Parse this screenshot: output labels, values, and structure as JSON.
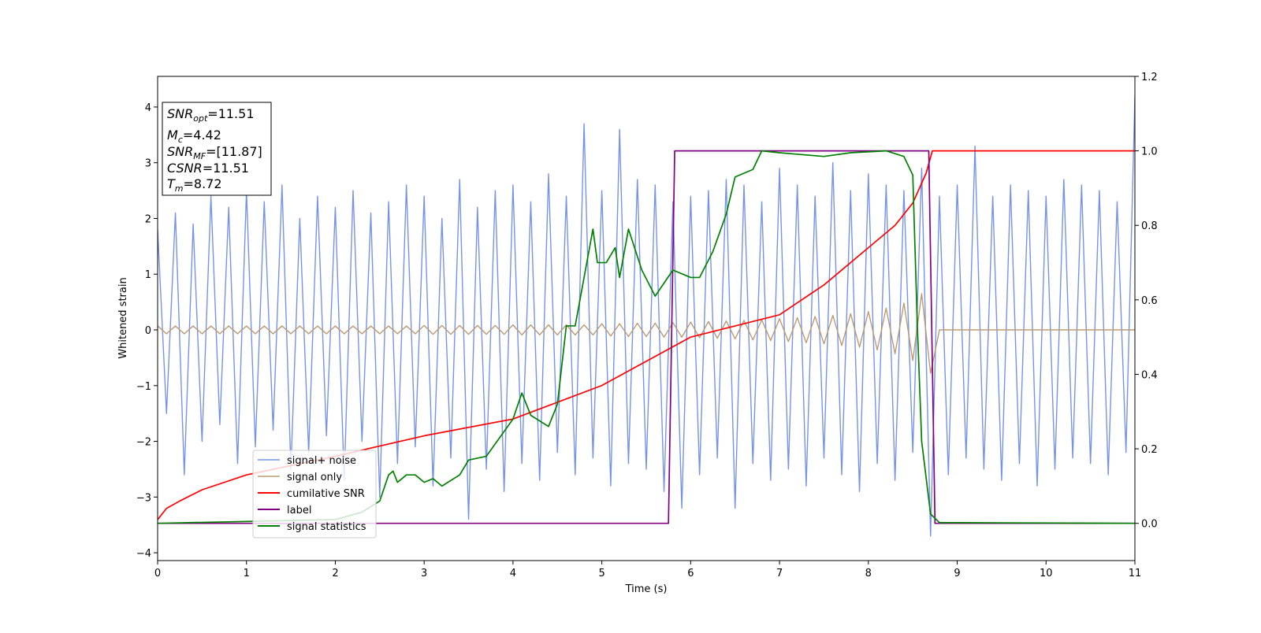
{
  "chart_data": {
    "type": "line",
    "xlabel": "Time (s)",
    "ylabel": "Whitened strain",
    "xlim": [
      0,
      11
    ],
    "ylim": [
      -4.14,
      4.55
    ],
    "y2lim": [
      -0.1,
      1.2
    ],
    "xticks": [
      0,
      1,
      2,
      3,
      4,
      5,
      6,
      7,
      8,
      9,
      10,
      11
    ],
    "yticks": [
      {
        "value": -4,
        "label": "−4"
      },
      {
        "value": -3,
        "label": "−3"
      },
      {
        "value": -2,
        "label": "−2"
      },
      {
        "value": -1,
        "label": "−1"
      },
      0,
      1,
      2,
      3,
      4
    ],
    "y2ticks": [
      {
        "value": 0,
        "label": "0.0"
      },
      {
        "value": 0.2,
        "label": "0.2"
      },
      {
        "value": 0.4,
        "label": "0.4"
      },
      {
        "value": 0.6,
        "label": "0.6"
      },
      {
        "value": 0.8,
        "label": "0.8"
      },
      {
        "value": 1.0,
        "label": "1.0"
      },
      {
        "value": 1.2,
        "label": "1.2"
      }
    ],
    "annotation": [
      [
        "SNR",
        "opt",
        "=11.51"
      ],
      [
        "M",
        "c",
        "=4.42"
      ],
      [
        "SNR",
        "MF",
        "=[11.87]"
      ],
      [
        "CSNR",
        "",
        "=11.51"
      ],
      [
        "T",
        "m",
        "=8.72"
      ]
    ],
    "legend": "lower left",
    "series": [
      {
        "name": "signal+ noise",
        "color": "#7793e8",
        "axis": "y",
        "x": [
          0,
          0.1,
          0.2,
          0.3,
          0.4,
          0.5,
          0.6,
          0.7,
          0.8,
          0.9,
          1,
          1.1,
          1.2,
          1.3,
          1.4,
          1.5,
          1.6,
          1.7,
          1.8,
          1.9,
          2,
          2.1,
          2.2,
          2.3,
          2.4,
          2.5,
          2.6,
          2.7,
          2.8,
          2.9,
          3,
          3.1,
          3.2,
          3.3,
          3.4,
          3.5,
          3.6,
          3.7,
          3.8,
          3.9,
          4,
          4.1,
          4.2,
          4.3,
          4.4,
          4.5,
          4.6,
          4.7,
          4.8,
          4.9,
          5,
          5.1,
          5.2,
          5.3,
          5.4,
          5.5,
          5.6,
          5.7,
          5.8,
          5.9,
          6,
          6.1,
          6.2,
          6.3,
          6.4,
          6.5,
          6.6,
          6.7,
          6.8,
          6.9,
          7,
          7.1,
          7.2,
          7.3,
          7.4,
          7.5,
          7.6,
          7.7,
          7.8,
          7.9,
          8,
          8.1,
          8.2,
          8.3,
          8.4,
          8.5,
          8.6,
          8.7,
          8.8,
          8.9,
          9,
          9.1,
          9.2,
          9.3,
          9.4,
          9.5,
          9.6,
          9.7,
          9.8,
          9.9,
          10,
          10.1,
          10.2,
          10.3,
          10.4,
          10.5,
          10.6,
          10.7,
          10.8,
          10.9,
          11
        ],
        "values": [
          1.8,
          -1.5,
          2.1,
          -2.6,
          1.9,
          -2.0,
          2.4,
          -1.7,
          2.2,
          -2.4,
          2.5,
          -2.1,
          2.3,
          -1.8,
          2.6,
          -2.5,
          2.0,
          -2.2,
          2.4,
          -1.9,
          2.2,
          -2.7,
          2.5,
          -2.0,
          2.1,
          -3.0,
          2.3,
          -2.4,
          2.6,
          -2.1,
          2.4,
          -2.8,
          2.0,
          -2.3,
          2.7,
          -3.4,
          2.2,
          -2.5,
          2.5,
          -2.9,
          2.6,
          -2.4,
          2.3,
          -2.7,
          2.8,
          -2.2,
          2.4,
          -2.6,
          3.7,
          -2.3,
          2.5,
          -2.8,
          3.6,
          -2.4,
          2.7,
          -2.5,
          2.6,
          -2.9,
          2.3,
          -3.2,
          2.4,
          -2.6,
          2.5,
          -2.3,
          2.7,
          -3.2,
          2.6,
          -2.4,
          2.3,
          -2.7,
          2.9,
          -2.5,
          2.6,
          -2.8,
          2.4,
          -2.3,
          3.0,
          -2.6,
          2.5,
          -2.9,
          2.8,
          -2.4,
          2.6,
          -2.7,
          2.5,
          -2.2,
          2.9,
          -3.7,
          2.4,
          -2.6,
          2.6,
          -2.3,
          3.3,
          -2.5,
          2.4,
          -2.7,
          2.6,
          -2.4,
          2.5,
          -2.8,
          2.4,
          -2.5,
          2.7,
          -2.3,
          2.6,
          -2.4,
          2.5,
          -2.6,
          2.3,
          -2.2,
          4.2
        ]
      },
      {
        "name": "signal only",
        "color": "#bc9b72",
        "axis": "y",
        "x": [
          0,
          0.1,
          0.2,
          0.3,
          0.4,
          0.5,
          0.6,
          0.7,
          0.8,
          0.9,
          1,
          1.1,
          1.2,
          1.3,
          1.4,
          1.5,
          1.6,
          1.7,
          1.8,
          1.9,
          2,
          2.1,
          2.2,
          2.3,
          2.4,
          2.5,
          2.6,
          2.7,
          2.8,
          2.9,
          3,
          3.1,
          3.2,
          3.3,
          3.4,
          3.5,
          3.6,
          3.7,
          3.8,
          3.9,
          4,
          4.1,
          4.2,
          4.3,
          4.4,
          4.5,
          4.6,
          4.7,
          4.8,
          4.9,
          5,
          5.1,
          5.2,
          5.3,
          5.4,
          5.5,
          5.6,
          5.7,
          5.8,
          5.9,
          6,
          6.1,
          6.2,
          6.3,
          6.4,
          6.5,
          6.6,
          6.7,
          6.8,
          6.9,
          7,
          7.1,
          7.2,
          7.3,
          7.4,
          7.5,
          7.6,
          7.7,
          7.8,
          7.9,
          8,
          8.1,
          8.2,
          8.3,
          8.4,
          8.5,
          8.6,
          8.7,
          8.8,
          8.9,
          9,
          9.1,
          9.2,
          9.3,
          9.4,
          9.5,
          9.6,
          9.7,
          9.8,
          9.9,
          10,
          10.1,
          10.2,
          10.3,
          10.4,
          10.5,
          10.6,
          10.7,
          10.8,
          10.9,
          11
        ],
        "values": [
          0.07,
          -0.07,
          0.07,
          -0.07,
          0.07,
          -0.07,
          0.07,
          -0.07,
          0.07,
          -0.07,
          0.07,
          -0.07,
          0.07,
          -0.07,
          0.07,
          -0.07,
          0.07,
          -0.07,
          0.07,
          -0.07,
          0.07,
          -0.07,
          0.07,
          -0.07,
          0.07,
          -0.07,
          0.07,
          -0.07,
          0.07,
          -0.07,
          0.08,
          -0.08,
          0.08,
          -0.08,
          0.08,
          -0.08,
          0.08,
          -0.08,
          0.08,
          -0.08,
          0.09,
          -0.09,
          0.09,
          -0.09,
          0.09,
          -0.09,
          0.09,
          -0.09,
          0.09,
          -0.09,
          0.11,
          -0.11,
          0.11,
          -0.12,
          0.12,
          -0.12,
          0.12,
          -0.13,
          0.13,
          -0.13,
          0.14,
          -0.14,
          0.15,
          -0.15,
          0.16,
          -0.16,
          0.17,
          -0.18,
          0.18,
          -0.19,
          0.2,
          -0.21,
          0.22,
          -0.23,
          0.24,
          -0.25,
          0.26,
          -0.28,
          0.29,
          -0.31,
          0.33,
          -0.36,
          0.39,
          -0.43,
          0.48,
          -0.55,
          0.65,
          -0.78,
          0,
          0,
          0,
          0,
          0,
          0,
          0,
          0,
          0,
          0,
          0,
          0,
          0,
          0,
          0,
          0,
          0,
          0,
          0,
          0,
          0,
          0,
          0
        ]
      },
      {
        "name": "cumilative SNR",
        "color": "#ff0000",
        "axis": "y2",
        "x": [
          0,
          0.1,
          0.25,
          0.5,
          1,
          2,
          3,
          4,
          5,
          6,
          7,
          7.5,
          8,
          8.3,
          8.5,
          8.65,
          8.72,
          9,
          10,
          11
        ],
        "values": [
          0.01,
          0.04,
          0.06,
          0.09,
          0.13,
          0.18,
          0.235,
          0.28,
          0.37,
          0.5,
          0.56,
          0.64,
          0.74,
          0.8,
          0.86,
          0.94,
          1.0,
          1.0,
          1.0,
          1.0
        ]
      },
      {
        "name": "label",
        "color": "#800080",
        "axis": "y2",
        "x": [
          0,
          5.75,
          5.82,
          8.68,
          8.75,
          11
        ],
        "values": [
          0,
          0,
          1,
          1,
          0,
          0
        ]
      },
      {
        "name": "signal statistics",
        "color": "#008000",
        "axis": "y2",
        "x": [
          0,
          2,
          2.3,
          2.5,
          2.6,
          2.65,
          2.7,
          2.8,
          2.9,
          3.0,
          3.1,
          3.2,
          3.4,
          3.5,
          3.7,
          3.85,
          4.0,
          4.1,
          4.2,
          4.4,
          4.5,
          4.6,
          4.7,
          4.8,
          4.9,
          4.95,
          5.05,
          5.15,
          5.2,
          5.3,
          5.45,
          5.6,
          5.8,
          6.0,
          6.1,
          6.25,
          6.4,
          6.5,
          6.7,
          6.8,
          7.0,
          7.5,
          7.8,
          8.2,
          8.4,
          8.5,
          8.55,
          8.6,
          8.7,
          8.8,
          11
        ],
        "values": [
          0,
          0.01,
          0.03,
          0.06,
          0.13,
          0.14,
          0.11,
          0.13,
          0.13,
          0.11,
          0.12,
          0.1,
          0.13,
          0.17,
          0.18,
          0.23,
          0.28,
          0.35,
          0.29,
          0.26,
          0.32,
          0.53,
          0.53,
          0.66,
          0.79,
          0.7,
          0.7,
          0.74,
          0.66,
          0.79,
          0.68,
          0.61,
          0.68,
          0.66,
          0.66,
          0.73,
          0.83,
          0.93,
          0.95,
          1.0,
          0.995,
          0.985,
          0.995,
          1.0,
          0.985,
          0.935,
          0.54,
          0.22,
          0.025,
          0.002,
          0
        ]
      }
    ]
  }
}
